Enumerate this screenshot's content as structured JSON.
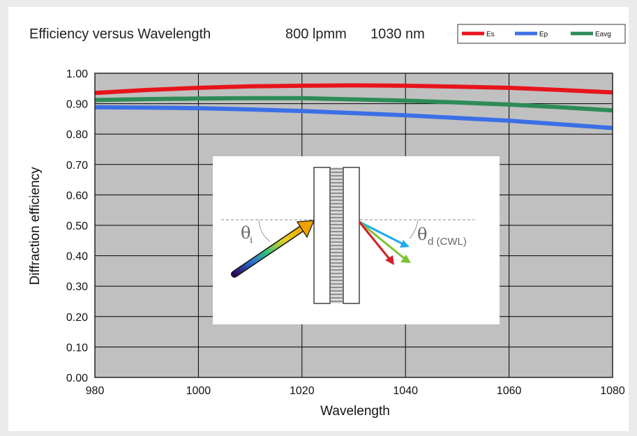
{
  "chart_data": {
    "type": "line",
    "title": "Efficiency versus Wavelength",
    "title_specs": [
      "800 lpmm",
      "1030 nm"
    ],
    "xlabel": "Wavelength",
    "ylabel": "Diffraction  efficiency",
    "xlim": [
      980,
      1080
    ],
    "ylim": [
      0,
      1
    ],
    "x_ticks": [
      980,
      1000,
      1020,
      1040,
      1060,
      1080
    ],
    "x_tick_labels": [
      "980",
      "1000",
      "1020",
      "1040",
      "1060",
      "1080"
    ],
    "y_ticks": [
      0,
      0.1,
      0.2,
      0.3,
      0.4,
      0.5,
      0.6,
      0.7,
      0.8,
      0.9,
      1.0
    ],
    "y_tick_labels": [
      "0.00",
      "0.10",
      "0.20",
      "0.30",
      "0.40",
      "0.50",
      "0.60",
      "0.70",
      "0.80",
      "0.90",
      "1.00"
    ],
    "grid": true,
    "plot_background": "#c0c0c0",
    "legend_position": "top-right",
    "series": [
      {
        "name": "Es",
        "color": "#e8141c",
        "x": [
          980,
          990,
          1000,
          1010,
          1020,
          1030,
          1040,
          1050,
          1060,
          1070,
          1080
        ],
        "y": [
          0.935,
          0.945,
          0.952,
          0.957,
          0.959,
          0.96,
          0.959,
          0.956,
          0.952,
          0.945,
          0.937
        ]
      },
      {
        "name": "Ep",
        "color": "#3b6fe6",
        "x": [
          980,
          990,
          1000,
          1010,
          1020,
          1030,
          1040,
          1050,
          1060,
          1070,
          1080
        ],
        "y": [
          0.888,
          0.887,
          0.885,
          0.881,
          0.876,
          0.869,
          0.862,
          0.853,
          0.844,
          0.832,
          0.82
        ]
      },
      {
        "name": "Eavg",
        "color": "#2e8b57",
        "x": [
          980,
          990,
          1000,
          1010,
          1020,
          1030,
          1040,
          1050,
          1060,
          1070,
          1080
        ],
        "y": [
          0.912,
          0.915,
          0.917,
          0.918,
          0.918,
          0.914,
          0.91,
          0.904,
          0.897,
          0.888,
          0.878
        ]
      }
    ],
    "inset": {
      "theta_i": "θ",
      "theta_i_sub": "i",
      "theta_d": "θ",
      "theta_d_sub": "d (CWL)"
    }
  }
}
